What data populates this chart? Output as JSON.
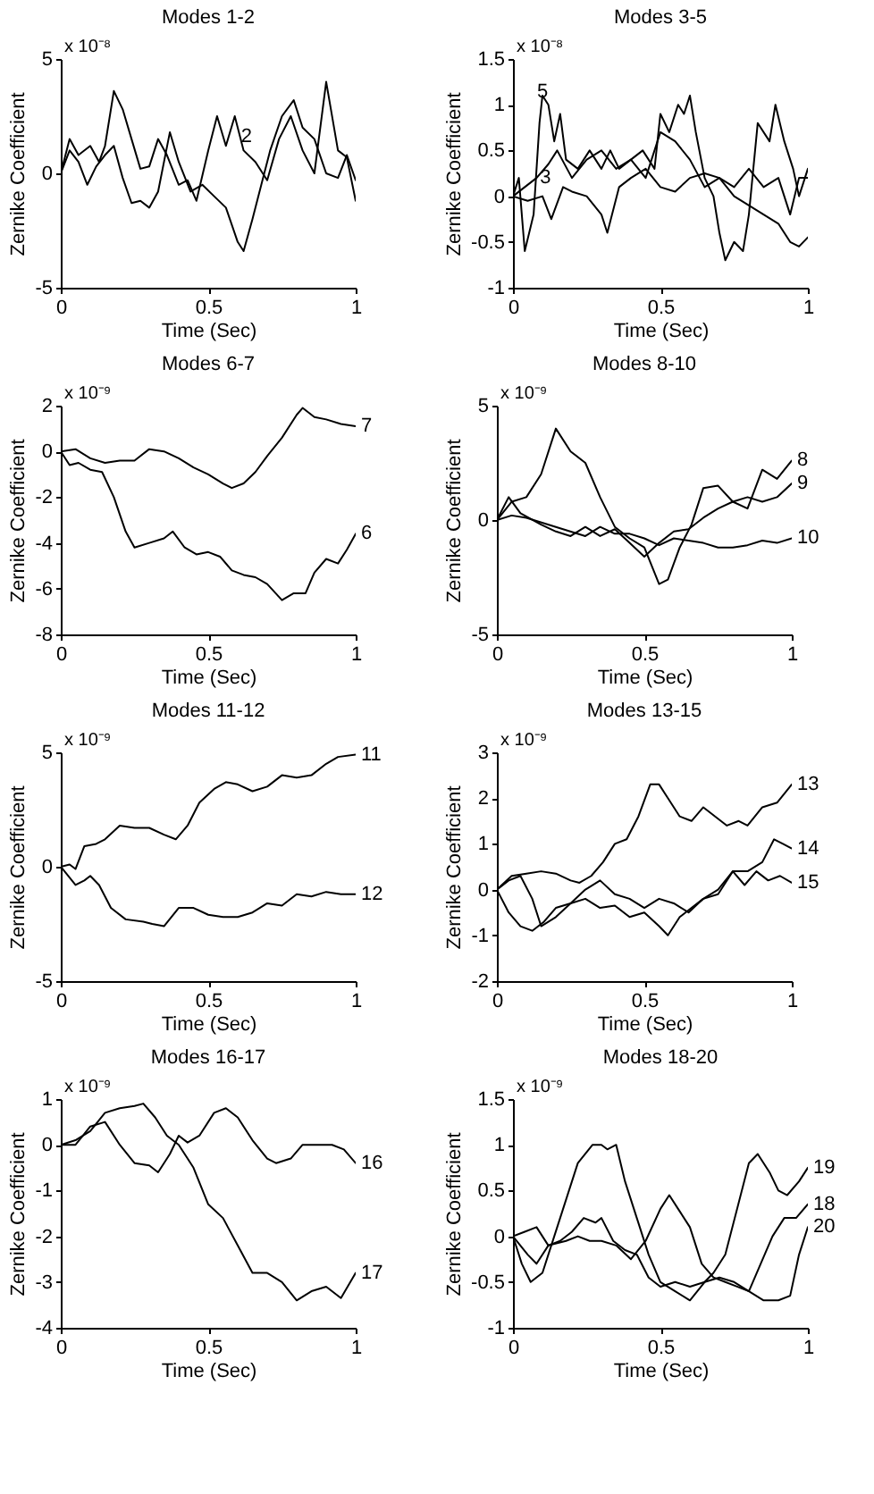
{
  "chart_data": [
    {
      "type": "line",
      "title": "Modes 1-2",
      "xlabel": "Time (Sec)",
      "ylabel": "Zernike Coefficient",
      "annotations": [
        "x 10⁻⁸",
        {
          "text": "2",
          "x": 0.63,
          "y": 1.6
        }
      ],
      "xlim": [
        0,
        1
      ],
      "xticks": [
        0,
        0.5,
        1
      ],
      "ylim": [
        -5,
        5
      ],
      "yticks": [
        -5,
        0,
        5
      ],
      "series": [
        {
          "color": "#000000",
          "x": [
            0,
            0.03,
            0.06,
            0.1,
            0.13,
            0.15,
            0.18,
            0.21,
            0.24,
            0.27,
            0.3,
            0.33,
            0.36,
            0.4,
            0.43,
            0.46,
            0.5,
            0.53,
            0.56,
            0.59,
            0.62,
            0.66,
            0.7,
            0.74,
            0.78,
            0.82,
            0.86,
            0.9,
            0.94,
            0.97,
            1
          ],
          "values": [
            0,
            1.5,
            0.8,
            1.2,
            0.5,
            1.2,
            3.6,
            2.8,
            1.5,
            0.2,
            0.3,
            1.5,
            0.8,
            -0.5,
            -0.3,
            -1.2,
            1,
            2.5,
            1.2,
            2.5,
            1,
            0.5,
            -0.3,
            1.5,
            2.5,
            1,
            0,
            4,
            1,
            0.7,
            -1.2
          ]
        },
        {
          "color": "#000000",
          "x": [
            0,
            0.03,
            0.06,
            0.09,
            0.12,
            0.15,
            0.18,
            0.21,
            0.24,
            0.27,
            0.3,
            0.33,
            0.37,
            0.4,
            0.44,
            0.48,
            0.52,
            0.56,
            0.6,
            0.62,
            0.65,
            0.68,
            0.71,
            0.75,
            0.79,
            0.82,
            0.86,
            0.9,
            0.94,
            0.97,
            1
          ],
          "values": [
            0,
            1,
            0.5,
            -0.5,
            0.3,
            0.8,
            1.2,
            -0.2,
            -1.3,
            -1.2,
            -1.5,
            -0.8,
            1.8,
            0.5,
            -0.8,
            -0.5,
            -1,
            -1.5,
            -3,
            -3.4,
            -2,
            -0.5,
            1,
            2.5,
            3.2,
            2,
            1.5,
            0,
            -0.2,
            0.8,
            -0.3
          ]
        }
      ]
    },
    {
      "type": "line",
      "title": "Modes 3-5",
      "xlabel": "Time (Sec)",
      "ylabel": "Zernike Coefficient",
      "annotations": [
        "x 10⁻⁸",
        {
          "text": "5",
          "x": 0.1,
          "y": 1.14
        },
        {
          "text": "3",
          "x": 0.11,
          "y": 0.2
        }
      ],
      "xlim": [
        0,
        1
      ],
      "xticks": [
        0,
        0.5,
        1
      ],
      "ylim": [
        -1,
        1.5
      ],
      "yticks": [
        -1,
        -0.5,
        0,
        0.5,
        1,
        1.5
      ],
      "series": [
        {
          "color": "#000000",
          "x": [
            0,
            0.02,
            0.04,
            0.07,
            0.09,
            0.1,
            0.12,
            0.14,
            0.16,
            0.18,
            0.22,
            0.26,
            0.3,
            0.33,
            0.36,
            0.4,
            0.44,
            0.48,
            0.5,
            0.53,
            0.56,
            0.58,
            0.6,
            0.62,
            0.65,
            0.68,
            0.7,
            0.72,
            0.75,
            0.78,
            0.8,
            0.83,
            0.87,
            0.89,
            0.92,
            0.95,
            0.97,
            1
          ],
          "values": [
            0,
            0.2,
            -0.6,
            -0.2,
            0.8,
            1.1,
            1,
            0.6,
            0.9,
            0.4,
            0.3,
            0.5,
            0.3,
            0.5,
            0.3,
            0.4,
            0.5,
            0.3,
            0.9,
            0.7,
            1,
            0.9,
            1.1,
            0.7,
            0.2,
            0,
            -0.4,
            -0.7,
            -0.5,
            -0.6,
            -0.2,
            0.8,
            0.6,
            1,
            0.6,
            0.3,
            0,
            0.3
          ]
        },
        {
          "color": "#000000",
          "x": [
            0,
            0.04,
            0.08,
            0.12,
            0.15,
            0.2,
            0.25,
            0.3,
            0.35,
            0.4,
            0.45,
            0.5,
            0.55,
            0.6,
            0.65,
            0.7,
            0.75,
            0.8,
            0.85,
            0.9,
            0.94,
            0.97,
            1
          ],
          "values": [
            0,
            0.1,
            0.2,
            0.35,
            0.5,
            0.2,
            0.4,
            0.5,
            0.3,
            0.4,
            0.2,
            0.7,
            0.6,
            0.4,
            0.1,
            0.2,
            0.1,
            0.3,
            0.1,
            0.2,
            -0.2,
            0.2,
            0.2
          ]
        },
        {
          "color": "#000000",
          "x": [
            0,
            0.05,
            0.1,
            0.13,
            0.17,
            0.2,
            0.25,
            0.3,
            0.32,
            0.36,
            0.4,
            0.45,
            0.5,
            0.55,
            0.6,
            0.65,
            0.7,
            0.75,
            0.8,
            0.85,
            0.9,
            0.94,
            0.97,
            1
          ],
          "values": [
            0,
            -0.05,
            0,
            -0.25,
            0.1,
            0.05,
            0,
            -0.2,
            -0.4,
            0.1,
            0.2,
            0.3,
            0.1,
            0.05,
            0.2,
            0.25,
            0.2,
            0,
            -0.1,
            -0.2,
            -0.3,
            -0.5,
            -0.55,
            -0.45
          ]
        }
      ]
    },
    {
      "type": "line",
      "title": "Modes 6-7",
      "xlabel": "Time (Sec)",
      "ylabel": "Zernike Coefficient",
      "annotations": [
        "x 10⁻⁹"
      ],
      "xlim": [
        0,
        1
      ],
      "xticks": [
        0,
        0.5,
        1
      ],
      "ylim": [
        -8,
        2
      ],
      "yticks": [
        -8,
        -6,
        -4,
        -2,
        0,
        2
      ],
      "series": [
        {
          "name": "7",
          "color": "#000000",
          "x": [
            0,
            0.05,
            0.1,
            0.15,
            0.2,
            0.25,
            0.3,
            0.35,
            0.4,
            0.45,
            0.5,
            0.55,
            0.58,
            0.62,
            0.66,
            0.7,
            0.75,
            0.8,
            0.82,
            0.86,
            0.9,
            0.95,
            1
          ],
          "values": [
            0,
            0.1,
            -0.3,
            -0.5,
            -0.4,
            -0.4,
            0.1,
            0,
            -0.3,
            -0.7,
            -1,
            -1.4,
            -1.6,
            -1.4,
            -0.9,
            -0.2,
            0.6,
            1.6,
            1.9,
            1.5,
            1.4,
            1.2,
            1.1
          ]
        },
        {
          "name": "6",
          "color": "#000000",
          "x": [
            0,
            0.03,
            0.06,
            0.1,
            0.14,
            0.18,
            0.22,
            0.25,
            0.3,
            0.35,
            0.38,
            0.42,
            0.46,
            0.5,
            0.54,
            0.58,
            0.62,
            0.66,
            0.7,
            0.75,
            0.79,
            0.83,
            0.86,
            0.9,
            0.94,
            0.97,
            1
          ],
          "values": [
            0,
            -0.6,
            -0.5,
            -0.8,
            -0.9,
            -2,
            -3.5,
            -4.2,
            -4,
            -3.8,
            -3.5,
            -4.2,
            -4.5,
            -4.4,
            -4.6,
            -5.2,
            -5.4,
            -5.5,
            -5.8,
            -6.5,
            -6.2,
            -6.2,
            -5.3,
            -4.7,
            -4.9,
            -4.3,
            -3.6
          ]
        }
      ]
    },
    {
      "type": "line",
      "title": "Modes 8-10",
      "xlabel": "Time (Sec)",
      "ylabel": "Zernike Coefficient",
      "annotations": [
        "x 10⁻⁹"
      ],
      "xlim": [
        0,
        1
      ],
      "xticks": [
        0,
        0.5,
        1
      ],
      "ylim": [
        -5,
        5
      ],
      "yticks": [
        -5,
        0,
        5
      ],
      "series": [
        {
          "name": "8",
          "color": "#000000",
          "x": [
            0,
            0.05,
            0.1,
            0.15,
            0.2,
            0.25,
            0.3,
            0.35,
            0.4,
            0.45,
            0.5,
            0.55,
            0.58,
            0.62,
            0.66,
            0.7,
            0.75,
            0.8,
            0.85,
            0.9,
            0.95,
            1
          ],
          "values": [
            0,
            0.8,
            1,
            2,
            4,
            3,
            2.5,
            1,
            -0.3,
            -0.8,
            -1.2,
            -2.8,
            -2.6,
            -1.2,
            -0.2,
            1.4,
            1.5,
            0.8,
            0.5,
            2.2,
            1.8,
            2.6
          ]
        },
        {
          "name": "9",
          "color": "#000000",
          "x": [
            0,
            0.04,
            0.08,
            0.15,
            0.2,
            0.25,
            0.3,
            0.35,
            0.4,
            0.45,
            0.5,
            0.55,
            0.6,
            0.65,
            0.7,
            0.75,
            0.8,
            0.85,
            0.9,
            0.95,
            1
          ],
          "values": [
            0,
            1,
            0.3,
            -0.2,
            -0.5,
            -0.7,
            -0.3,
            -0.7,
            -0.4,
            -1,
            -1.6,
            -1,
            -0.5,
            -0.4,
            0.1,
            0.5,
            0.8,
            1,
            0.8,
            1,
            1.6
          ]
        },
        {
          "name": "10",
          "color": "#000000",
          "x": [
            0,
            0.05,
            0.1,
            0.2,
            0.3,
            0.35,
            0.4,
            0.45,
            0.5,
            0.55,
            0.6,
            0.65,
            0.7,
            0.75,
            0.8,
            0.85,
            0.9,
            0.95,
            1
          ],
          "values": [
            0,
            0.2,
            0.1,
            -0.3,
            -0.7,
            -0.3,
            -0.6,
            -0.6,
            -0.8,
            -1.1,
            -0.8,
            -0.9,
            -1,
            -1.2,
            -1.2,
            -1.1,
            -0.9,
            -1,
            -0.8
          ]
        }
      ]
    },
    {
      "type": "line",
      "title": "Modes 11-12",
      "xlabel": "Time (Sec)",
      "ylabel": "Zernike Coefficient",
      "annotations": [
        "x 10⁻⁹"
      ],
      "xlim": [
        0,
        1
      ],
      "xticks": [
        0,
        0.5,
        1
      ],
      "ylim": [
        -5,
        5
      ],
      "yticks": [
        -5,
        0,
        5
      ],
      "series": [
        {
          "name": "11",
          "color": "#000000",
          "x": [
            0,
            0.03,
            0.05,
            0.08,
            0.12,
            0.15,
            0.2,
            0.25,
            0.3,
            0.35,
            0.39,
            0.43,
            0.47,
            0.52,
            0.56,
            0.6,
            0.65,
            0.7,
            0.75,
            0.8,
            0.85,
            0.9,
            0.94,
            1
          ],
          "values": [
            0,
            0.1,
            -0.1,
            0.9,
            1,
            1.2,
            1.8,
            1.7,
            1.7,
            1.4,
            1.2,
            1.8,
            2.8,
            3.4,
            3.7,
            3.6,
            3.3,
            3.5,
            4,
            3.9,
            4,
            4.5,
            4.8,
            4.9
          ]
        },
        {
          "name": "12",
          "color": "#000000",
          "x": [
            0,
            0.05,
            0.08,
            0.1,
            0.13,
            0.17,
            0.22,
            0.28,
            0.31,
            0.35,
            0.4,
            0.45,
            0.5,
            0.55,
            0.6,
            0.65,
            0.7,
            0.75,
            0.8,
            0.85,
            0.9,
            0.95,
            1
          ],
          "values": [
            0,
            -0.8,
            -0.6,
            -0.4,
            -0.8,
            -1.8,
            -2.3,
            -2.4,
            -2.5,
            -2.6,
            -1.8,
            -1.8,
            -2.1,
            -2.2,
            -2.2,
            -2,
            -1.6,
            -1.7,
            -1.2,
            -1.3,
            -1.1,
            -1.2,
            -1.2
          ]
        }
      ]
    },
    {
      "type": "line",
      "title": "Modes 13-15",
      "xlabel": "Time (Sec)",
      "ylabel": "Zernike Coefficient",
      "annotations": [
        "x 10⁻⁹"
      ],
      "xlim": [
        0,
        1
      ],
      "xticks": [
        0,
        0.5,
        1
      ],
      "ylim": [
        -2,
        3
      ],
      "yticks": [
        -2,
        -1,
        0,
        1,
        2,
        3
      ],
      "series": [
        {
          "name": "13",
          "color": "#000000",
          "x": [
            0,
            0.05,
            0.1,
            0.15,
            0.2,
            0.25,
            0.28,
            0.32,
            0.36,
            0.4,
            0.44,
            0.48,
            0.52,
            0.55,
            0.58,
            0.62,
            0.66,
            0.7,
            0.74,
            0.78,
            0.82,
            0.85,
            0.9,
            0.95,
            1
          ],
          "values": [
            0,
            0.3,
            0.35,
            0.4,
            0.35,
            0.2,
            0.15,
            0.3,
            0.6,
            1,
            1.1,
            1.6,
            2.3,
            2.3,
            2,
            1.6,
            1.5,
            1.8,
            1.6,
            1.4,
            1.5,
            1.4,
            1.8,
            1.9,
            2.3
          ]
        },
        {
          "name": "14",
          "color": "#000000",
          "x": [
            0,
            0.04,
            0.08,
            0.12,
            0.15,
            0.2,
            0.25,
            0.3,
            0.35,
            0.4,
            0.45,
            0.5,
            0.55,
            0.58,
            0.62,
            0.66,
            0.7,
            0.75,
            0.8,
            0.85,
            0.9,
            0.94,
            0.97,
            1
          ],
          "values": [
            0,
            0.2,
            0.3,
            -0.2,
            -0.8,
            -0.6,
            -0.3,
            -0.2,
            -0.4,
            -0.35,
            -0.6,
            -0.5,
            -0.8,
            -1,
            -0.6,
            -0.4,
            -0.2,
            -0.1,
            0.4,
            0.4,
            0.6,
            1.1,
            1,
            0.9
          ]
        },
        {
          "name": "15",
          "color": "#000000",
          "x": [
            0,
            0.04,
            0.08,
            0.12,
            0.16,
            0.2,
            0.25,
            0.3,
            0.35,
            0.4,
            0.45,
            0.5,
            0.55,
            0.6,
            0.65,
            0.7,
            0.75,
            0.8,
            0.84,
            0.88,
            0.92,
            0.96,
            1
          ],
          "values": [
            0,
            -0.5,
            -0.8,
            -0.9,
            -0.7,
            -0.4,
            -0.3,
            0,
            0.2,
            -0.1,
            -0.2,
            -0.4,
            -0.2,
            -0.3,
            -0.5,
            -0.2,
            0,
            0.4,
            0.1,
            0.4,
            0.2,
            0.3,
            0.15
          ]
        }
      ]
    },
    {
      "type": "line",
      "title": "Modes 16-17",
      "xlabel": "Time (Sec)",
      "ylabel": "Zernike Coefficient",
      "annotations": [
        "x 10⁻⁹"
      ],
      "xlim": [
        0,
        1
      ],
      "xticks": [
        0,
        0.5,
        1
      ],
      "ylim": [
        -4,
        1
      ],
      "yticks": [
        -4,
        -3,
        -2,
        -1,
        0,
        1
      ],
      "series": [
        {
          "name": "16",
          "color": "#000000",
          "x": [
            0,
            0.05,
            0.1,
            0.15,
            0.2,
            0.25,
            0.3,
            0.33,
            0.37,
            0.4,
            0.43,
            0.47,
            0.52,
            0.56,
            0.6,
            0.65,
            0.7,
            0.73,
            0.78,
            0.82,
            0.87,
            0.92,
            0.96,
            1
          ],
          "values": [
            0,
            0,
            0.4,
            0.5,
            0,
            -0.4,
            -0.45,
            -0.6,
            -0.2,
            0.2,
            0.05,
            0.2,
            0.7,
            0.8,
            0.6,
            0.1,
            -0.3,
            -0.4,
            -0.3,
            0,
            0,
            0,
            -0.1,
            -0.4
          ]
        },
        {
          "name": "17",
          "color": "#000000",
          "x": [
            0,
            0.05,
            0.1,
            0.15,
            0.2,
            0.25,
            0.28,
            0.32,
            0.36,
            0.4,
            0.45,
            0.5,
            0.55,
            0.6,
            0.65,
            0.7,
            0.75,
            0.8,
            0.85,
            0.9,
            0.95,
            1
          ],
          "values": [
            0,
            0.1,
            0.3,
            0.7,
            0.8,
            0.85,
            0.9,
            0.6,
            0.2,
            0,
            -0.5,
            -1.3,
            -1.6,
            -2.2,
            -2.8,
            -2.8,
            -3,
            -3.4,
            -3.2,
            -3.1,
            -3.35,
            -2.8
          ]
        }
      ]
    },
    {
      "type": "line",
      "title": "Modes 18-20",
      "xlabel": "Time (Sec)",
      "ylabel": "Zernike Coefficient",
      "annotations": [
        "x 10⁻⁹"
      ],
      "xlim": [
        0,
        1
      ],
      "xticks": [
        0,
        0.5,
        1
      ],
      "ylim": [
        -1,
        1.5
      ],
      "yticks": [
        -1,
        -0.5,
        0,
        0.5,
        1,
        1.5
      ],
      "series": [
        {
          "name": "19",
          "color": "#000000",
          "x": [
            0,
            0.03,
            0.06,
            0.1,
            0.14,
            0.18,
            0.22,
            0.27,
            0.3,
            0.32,
            0.35,
            0.38,
            0.42,
            0.46,
            0.5,
            0.55,
            0.6,
            0.65,
            0.68,
            0.72,
            0.76,
            0.8,
            0.83,
            0.87,
            0.9,
            0.93,
            0.97,
            1
          ],
          "values": [
            0,
            -0.3,
            -0.5,
            -0.4,
            0,
            0.4,
            0.8,
            1,
            1,
            0.95,
            1,
            0.6,
            0.2,
            -0.2,
            -0.5,
            -0.6,
            -0.7,
            -0.5,
            -0.4,
            -0.2,
            0.3,
            0.8,
            0.9,
            0.7,
            0.5,
            0.45,
            0.6,
            0.75
          ]
        },
        {
          "name": "18",
          "color": "#000000",
          "x": [
            0,
            0.05,
            0.08,
            0.12,
            0.18,
            0.22,
            0.26,
            0.3,
            0.35,
            0.4,
            0.45,
            0.5,
            0.53,
            0.56,
            0.6,
            0.64,
            0.68,
            0.72,
            0.76,
            0.8,
            0.84,
            0.88,
            0.92,
            0.96,
            1
          ],
          "values": [
            0,
            -0.2,
            -0.3,
            -0.1,
            -0.05,
            0,
            -0.05,
            -0.05,
            -0.1,
            -0.25,
            -0.05,
            0.3,
            0.45,
            0.3,
            0.1,
            -0.3,
            -0.45,
            -0.5,
            -0.55,
            -0.6,
            -0.3,
            0,
            0.2,
            0.2,
            0.35
          ]
        },
        {
          "name": "20",
          "color": "#000000",
          "x": [
            0,
            0.04,
            0.08,
            0.12,
            0.16,
            0.2,
            0.24,
            0.28,
            0.3,
            0.34,
            0.38,
            0.42,
            0.46,
            0.5,
            0.55,
            0.6,
            0.65,
            0.7,
            0.75,
            0.8,
            0.85,
            0.9,
            0.94,
            0.97,
            1
          ],
          "values": [
            0,
            0.05,
            0.1,
            -0.1,
            -0.05,
            0.05,
            0.2,
            0.15,
            0.2,
            -0.05,
            -0.15,
            -0.2,
            -0.45,
            -0.55,
            -0.5,
            -0.55,
            -0.5,
            -0.45,
            -0.5,
            -0.6,
            -0.7,
            -0.7,
            -0.65,
            -0.2,
            0.1
          ]
        }
      ]
    }
  ]
}
